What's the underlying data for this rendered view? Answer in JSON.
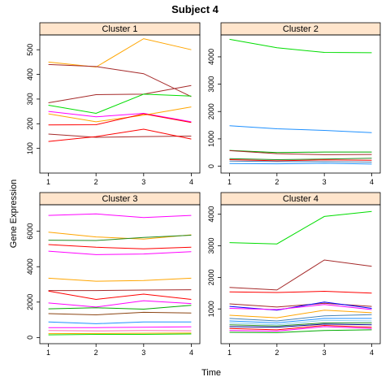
{
  "title": "Subject 4",
  "xlabel": "Time",
  "ylabel": "Gene Expression",
  "chart_data": [
    {
      "type": "line",
      "panel": "Cluster 1",
      "x": [
        1,
        2,
        3,
        4
      ],
      "xticks": [
        1,
        2,
        3,
        4
      ],
      "ylim": [
        0,
        560
      ],
      "yticks": [
        100,
        200,
        300,
        400,
        500
      ],
      "grid": false,
      "series": [
        {
          "color": "#ffa500",
          "values": [
            450,
            430,
            545,
            500
          ]
        },
        {
          "color": "#a52a2a",
          "values": [
            440,
            432,
            403,
            310
          ]
        },
        {
          "color": "#a52a2a",
          "values": [
            285,
            318,
            320,
            355
          ]
        },
        {
          "color": "#00dd00",
          "values": [
            275,
            242,
            320,
            312
          ]
        },
        {
          "color": "#ff00ff",
          "values": [
            250,
            228,
            242,
            208
          ]
        },
        {
          "color": "#ffa500",
          "values": [
            240,
            208,
            235,
            268
          ]
        },
        {
          "color": "#ff0000",
          "values": [
            195,
            196,
            240,
            205
          ]
        },
        {
          "color": "#a52a2a",
          "values": [
            158,
            145,
            148,
            150
          ]
        },
        {
          "color": "#ff0000",
          "values": [
            128,
            148,
            178,
            138
          ]
        }
      ]
    },
    {
      "type": "line",
      "panel": "Cluster 2",
      "x": [
        1,
        2,
        3,
        4
      ],
      "xticks": [
        1,
        2,
        3,
        4
      ],
      "ylim": [
        -250,
        4800
      ],
      "yticks": [
        0,
        1000,
        2000,
        3000,
        4000
      ],
      "grid": false,
      "series": [
        {
          "color": "#00dd00",
          "values": [
            4640,
            4330,
            4160,
            4150
          ]
        },
        {
          "color": "#1e90ff",
          "values": [
            1480,
            1370,
            1310,
            1230
          ]
        },
        {
          "color": "#00aa00",
          "values": [
            580,
            500,
            520,
            520
          ]
        },
        {
          "color": "#a52a2a",
          "values": [
            570,
            460,
            420,
            430
          ]
        },
        {
          "color": "#228b22",
          "values": [
            280,
            240,
            260,
            290
          ]
        },
        {
          "color": "#ff0000",
          "values": [
            240,
            200,
            230,
            220
          ]
        },
        {
          "color": "#4682b4",
          "values": [
            190,
            170,
            170,
            150
          ]
        },
        {
          "color": "#1e90ff",
          "values": [
            100,
            90,
            110,
            80
          ]
        }
      ]
    },
    {
      "type": "line",
      "panel": "Cluster 3",
      "x": [
        1,
        2,
        3,
        4
      ],
      "xticks": [
        1,
        2,
        3,
        4
      ],
      "ylim": [
        -350,
        7500
      ],
      "yticks": [
        0,
        2000,
        4000,
        6000
      ],
      "grid": false,
      "series": [
        {
          "color": "#ff00ff",
          "values": [
            6900,
            6980,
            6780,
            6900
          ]
        },
        {
          "color": "#ffa500",
          "values": [
            5950,
            5680,
            5560,
            5800
          ]
        },
        {
          "color": "#228b22",
          "values": [
            5500,
            5480,
            5650,
            5780
          ]
        },
        {
          "color": "#ff0000",
          "values": [
            5250,
            5100,
            5010,
            5100
          ]
        },
        {
          "color": "#ff00ff",
          "values": [
            4880,
            4680,
            4720,
            4850
          ]
        },
        {
          "color": "#ffa500",
          "values": [
            3350,
            3180,
            3220,
            3350
          ]
        },
        {
          "color": "#a52a2a",
          "values": [
            2650,
            2650,
            2680,
            2700
          ]
        },
        {
          "color": "#ff0000",
          "values": [
            2620,
            2150,
            2450,
            2150
          ]
        },
        {
          "color": "#ff00ff",
          "values": [
            1950,
            1720,
            2080,
            1920
          ]
        },
        {
          "color": "#00aa00",
          "values": [
            1620,
            1680,
            1600,
            1820
          ]
        },
        {
          "color": "#8b4513",
          "values": [
            1350,
            1280,
            1420,
            1380
          ]
        },
        {
          "color": "#1e90ff",
          "values": [
            880,
            780,
            880,
            880
          ]
        },
        {
          "color": "#ff00ff",
          "values": [
            560,
            560,
            580,
            600
          ]
        },
        {
          "color": "#ff69b4",
          "values": [
            400,
            370,
            400,
            380
          ]
        },
        {
          "color": "#ffa500",
          "values": [
            220,
            230,
            240,
            250
          ]
        },
        {
          "color": "#00dd00",
          "values": [
            150,
            180,
            180,
            200
          ]
        }
      ]
    },
    {
      "type": "line",
      "panel": "Cluster 4",
      "x": [
        1,
        2,
        3,
        4
      ],
      "xticks": [
        1,
        2,
        3,
        4
      ],
      "ylim": [
        -100,
        4300
      ],
      "yticks": [
        1000,
        2000,
        3000,
        4000
      ],
      "grid": false,
      "series": [
        {
          "color": "#00dd00",
          "values": [
            3100,
            3060,
            3930,
            4090
          ]
        },
        {
          "color": "#a52a2a",
          "values": [
            1680,
            1600,
            2550,
            2350
          ]
        },
        {
          "color": "#ff0000",
          "values": [
            1540,
            1520,
            1560,
            1500
          ]
        },
        {
          "color": "#a52a2a",
          "values": [
            1160,
            1060,
            1180,
            1080
          ]
        },
        {
          "color": "#0000ff",
          "values": [
            1080,
            960,
            1220,
            1020
          ]
        },
        {
          "color": "#ff00ff",
          "values": [
            1020,
            980,
            1140,
            980
          ]
        },
        {
          "color": "#ffa500",
          "values": [
            800,
            720,
            960,
            880
          ]
        },
        {
          "color": "#4682b4",
          "values": [
            700,
            620,
            780,
            820
          ]
        },
        {
          "color": "#1e90ff",
          "values": [
            620,
            560,
            700,
            700
          ]
        },
        {
          "color": "#87ceeb",
          "values": [
            560,
            500,
            640,
            620
          ]
        },
        {
          "color": "#228b22",
          "values": [
            500,
            460,
            560,
            560
          ]
        },
        {
          "color": "#00008b",
          "values": [
            440,
            420,
            520,
            500
          ]
        },
        {
          "color": "#ff0000",
          "values": [
            380,
            340,
            480,
            420
          ]
        },
        {
          "color": "#ff00ff",
          "values": [
            320,
            300,
            440,
            380
          ]
        },
        {
          "color": "#00aa00",
          "values": [
            260,
            250,
            320,
            340
          ]
        }
      ]
    }
  ]
}
